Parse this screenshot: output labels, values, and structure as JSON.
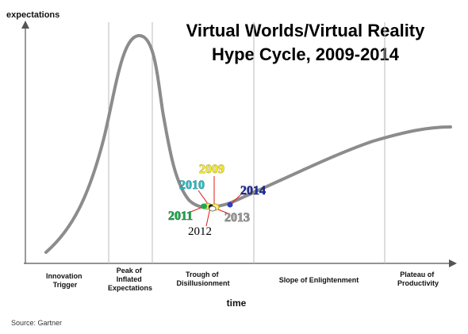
{
  "chart_data": {
    "type": "line",
    "title_line1": "Virtual Worlds/Virtual Reality",
    "title_line2": "Hype Cycle, 2009-2014",
    "ylabel": "expectations",
    "xlabel": "time",
    "source": "Source: Gartner",
    "grid": true,
    "phases": [
      {
        "lines": [
          "Innovation",
          "Trigger"
        ]
      },
      {
        "lines": [
          "Peak of",
          "Inflated",
          "Expectations"
        ]
      },
      {
        "lines": [
          "Trough of",
          "Disillusionment"
        ]
      },
      {
        "lines": [
          "Slope of Enlightenment"
        ]
      },
      {
        "lines": [
          "Plateau of",
          "Productivity"
        ]
      }
    ],
    "markers": [
      {
        "label": "2009",
        "color": "#f2ea2a",
        "dot": "#f5f08a"
      },
      {
        "label": "2010",
        "color": "#2bb9c0",
        "dot": "#e4e84a"
      },
      {
        "label": "2011",
        "color": "#1aa64a",
        "dot": "#1fa84d"
      },
      {
        "label": "2012",
        "color": "#000000",
        "dot": "#111111"
      },
      {
        "label": "2013",
        "color": "#9a9a9a",
        "dot": "#ffffff"
      },
      {
        "label": "2014",
        "color": "#1e2f9c",
        "dot": "#2b3fbf"
      }
    ]
  }
}
